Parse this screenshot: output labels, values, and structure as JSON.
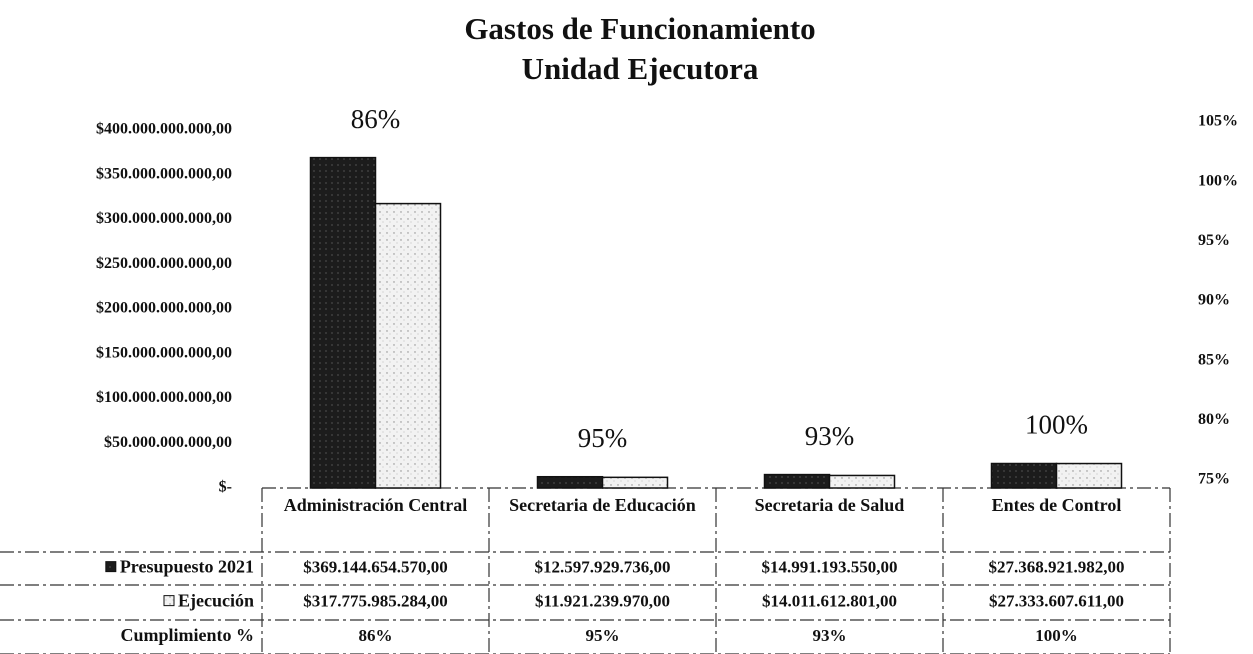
{
  "chart_data": {
    "type": "bar",
    "title": "Gastos de Funcionamiento",
    "subtitle": "Unidad Ejecutora",
    "categories": [
      "Administración Central",
      "Secretaria de Educación",
      "Secretaria de Salud",
      "Entes de Control"
    ],
    "series": [
      {
        "name": "Presupuesto 2021",
        "color": "#1c1c1c",
        "values": [
          369144654570,
          12597929736,
          14991193550,
          27368921982
        ],
        "value_labels": [
          "$369.144.654.570,00",
          "$12.597.929.736,00",
          "$14.991.193.550,00",
          "$27.368.921.982,00"
        ]
      },
      {
        "name": "Ejecución",
        "color": "#f2f2f2",
        "values": [
          317775985284,
          11921239970,
          14011612801,
          27333607611
        ],
        "value_labels": [
          "$317.775.985.284,00",
          "$11.921.239.970,00",
          "$14.011.612.801,00",
          "$27.333.607.611,00"
        ]
      }
    ],
    "cumplimiento": {
      "name": "Cumplimiento %",
      "values": [
        86,
        95,
        93,
        100
      ],
      "value_labels": [
        "86%",
        "95%",
        "93%",
        "100%"
      ]
    },
    "ylim": [
      0,
      400000000000
    ],
    "yticks": [
      {
        "value": 0,
        "label": "$-"
      },
      {
        "value": 50000000000,
        "label": "$50.000.000.000,00"
      },
      {
        "value": 100000000000,
        "label": "$100.000.000.000,00"
      },
      {
        "value": 150000000000,
        "label": "$150.000.000.000,00"
      },
      {
        "value": 200000000000,
        "label": "$200.000.000.000,00"
      },
      {
        "value": 250000000000,
        "label": "$250.000.000.000,00"
      },
      {
        "value": 300000000000,
        "label": "$300.000.000.000,00"
      },
      {
        "value": 350000000000,
        "label": "$350.000.000.000,00"
      },
      {
        "value": 400000000000,
        "label": "$400.000.000.000,00"
      }
    ],
    "y2lim": [
      75,
      105
    ],
    "y2ticks": [
      {
        "value": 75,
        "label": "75%"
      },
      {
        "value": 80,
        "label": "80%"
      },
      {
        "value": 85,
        "label": "85%"
      },
      {
        "value": 90,
        "label": "90%"
      },
      {
        "value": 95,
        "label": "95%"
      },
      {
        "value": 100,
        "label": "100%"
      },
      {
        "value": 105,
        "label": "105%"
      }
    ]
  }
}
